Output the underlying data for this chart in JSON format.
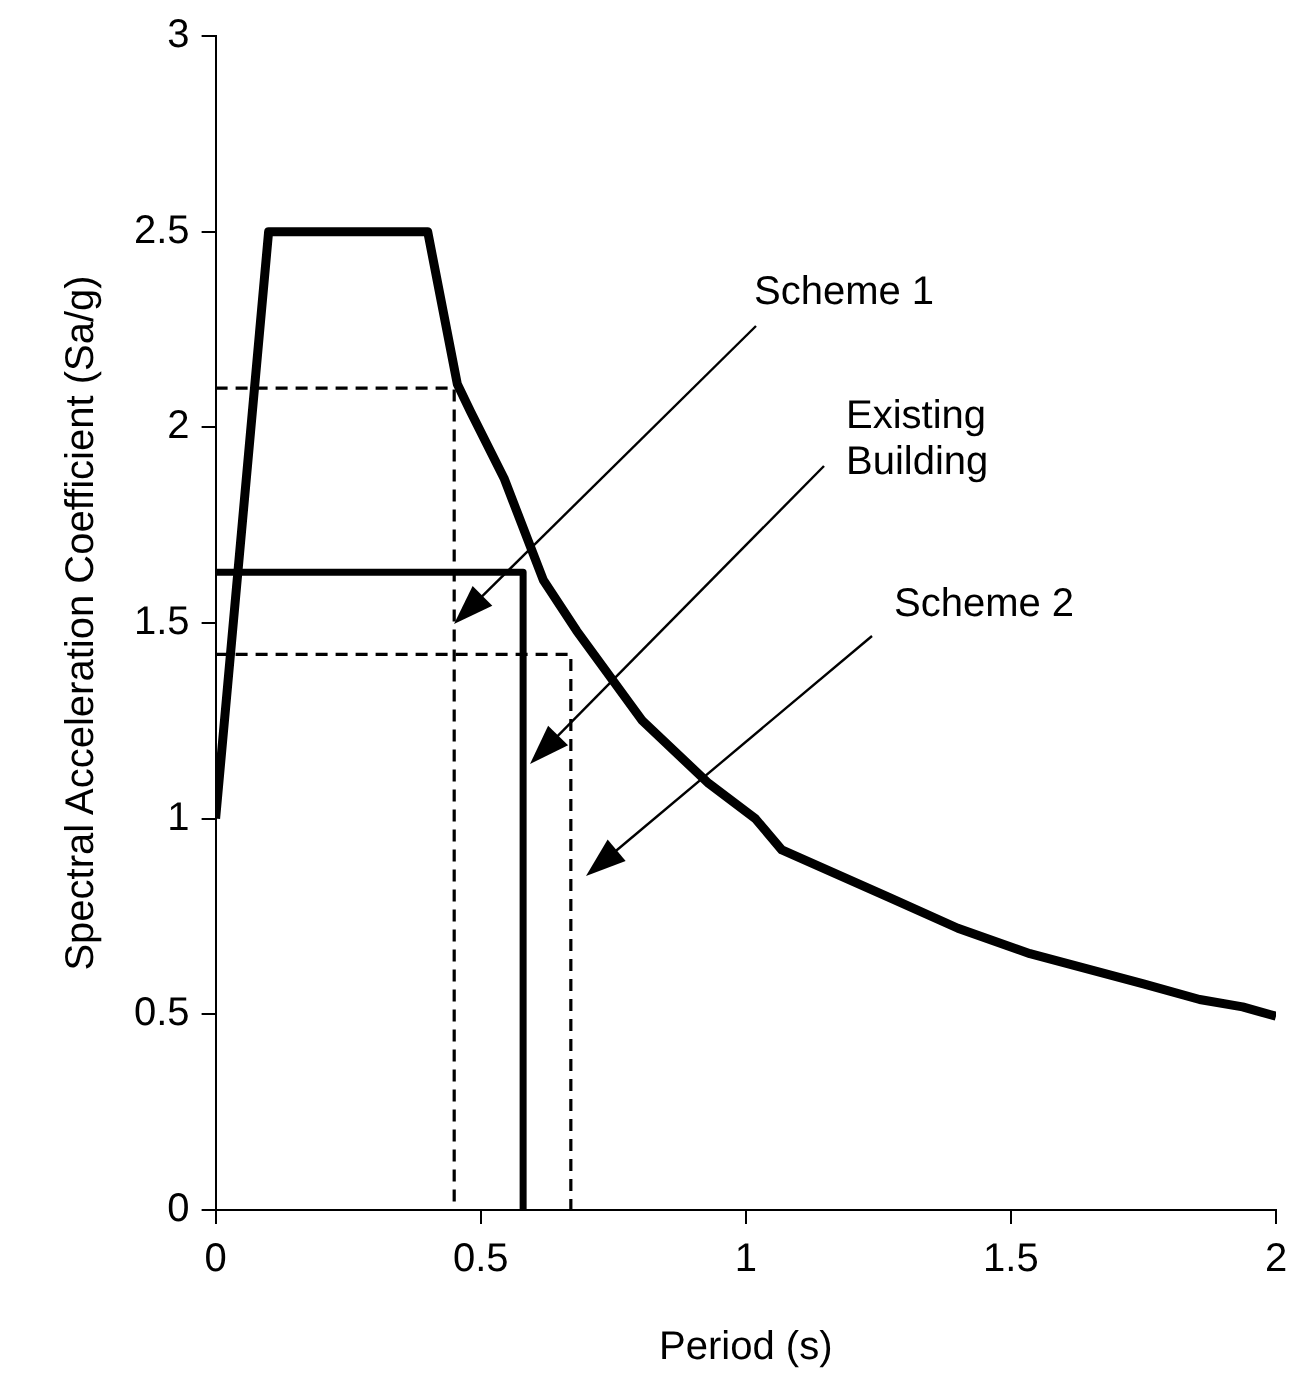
{
  "chart_data": {
    "type": "line",
    "xlabel": "Period (s)",
    "ylabel": "Spectral Acceleration Coefficient (Sa/g)",
    "xlim": [
      0,
      2
    ],
    "xticks": [
      0,
      0.5,
      1,
      1.5,
      2
    ],
    "ylim": [
      0,
      3
    ],
    "yticks": [
      0,
      0.5,
      1,
      1.5,
      2,
      2.5,
      3
    ],
    "grid": false,
    "legend": false,
    "marker": "none",
    "series": [
      {
        "color": "#000000",
        "line_style": "solid",
        "x": [
          0,
          0.1,
          0.4,
          0.456,
          0.481,
          0.544,
          0.618,
          0.681,
          0.805,
          0.93,
          1.018,
          1.068,
          1.268,
          1.4,
          1.536,
          1.75,
          1.856,
          1.937,
          2.0
        ],
        "values": [
          1,
          2.5,
          2.5,
          2.11,
          2.04,
          1.87,
          1.61,
          1.48,
          1.25,
          1.09,
          1.0,
          0.92,
          0.8,
          0.72,
          0.655,
          0.578,
          0.538,
          0.519,
          0.495
        ]
      },
      {
        "color": "#000000",
        "line_style": "solid",
        "x": [
          0,
          0.58,
          0.58
        ],
        "values": [
          1.63,
          1.63,
          0
        ]
      },
      {
        "color": "#000000",
        "line_style": "dashed",
        "x": [
          0,
          0.45,
          0.45
        ],
        "values": [
          2.1,
          2.1,
          0
        ]
      },
      {
        "color": "#000000",
        "line_style": "dashed",
        "x": [
          0,
          0.67,
          0.67
        ],
        "values": [
          1.42,
          1.42,
          0
        ]
      }
    ],
    "annotations": [
      "Scheme 1",
      "Existing\nBuilding",
      "Scheme 2"
    ]
  }
}
